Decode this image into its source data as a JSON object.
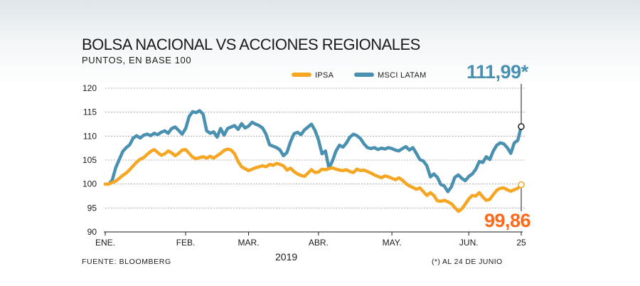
{
  "header": {
    "title": "BOLSA NACIONAL VS ACCIONES REGIONALES",
    "subtitle": "PUNTOS, EN BASE 100"
  },
  "footer": {
    "source": "FUENTE: BLOOMBERG",
    "note": "(*) AL 24 DE JUNIO"
  },
  "chart_data": {
    "type": "line",
    "title": "BOLSA NACIONAL VS ACCIONES REGIONALES",
    "subtitle": "PUNTOS, EN BASE 100",
    "xlabel": "2019",
    "ylabel": "",
    "ylim": [
      90,
      120
    ],
    "yticks": [
      90,
      95,
      100,
      105,
      110,
      115,
      120
    ],
    "x_tick_labels": [
      "ENE.",
      "FEB.",
      "MAR.",
      "ABR.",
      "MAY.",
      "JUN.",
      "25"
    ],
    "x_tick_index": [
      0,
      23,
      41,
      61,
      82,
      104,
      119
    ],
    "grid": true,
    "legend": "top",
    "colors": {
      "IPSA": "#f5a623",
      "MSCI LATAM": "#4a90b0",
      "msci_callout": "#4a90b0",
      "ipsa_callout": "#ff6a1a"
    },
    "annotations": {
      "msci_last": "111,99*",
      "ipsa_last": "99,86"
    },
    "series": [
      {
        "name": "IPSA",
        "values": [
          100,
          100,
          100.3,
          100.6,
          101.2,
          101.8,
          102.3,
          103,
          103.8,
          104.6,
          105.2,
          105.5,
          106.2,
          106.8,
          107.2,
          106.6,
          106,
          106.3,
          106.9,
          106.5,
          105.9,
          106.4,
          107.1,
          107.2,
          106.4,
          105.6,
          105.3,
          105.5,
          105.7,
          105.4,
          105.8,
          105.4,
          105.9,
          106.4,
          107,
          107.3,
          107.1,
          106.3,
          104.7,
          103.6,
          103.2,
          102.8,
          103.1,
          103.4,
          103.6,
          103.8,
          103.6,
          104.1,
          103.9,
          104.3,
          104.1,
          103.8,
          102.9,
          103.3,
          102.6,
          102.1,
          101.8,
          101.6,
          102.3,
          103,
          102.4,
          102.5,
          103.1,
          103,
          103.2,
          103.4,
          103.1,
          102.9,
          102.8,
          103,
          102.6,
          102.4,
          103.1,
          102.8,
          102.9,
          102.6,
          102.3,
          101.9,
          101.6,
          101.3,
          101.7,
          101.5,
          101.2,
          100.9,
          101.3,
          100.8,
          100.1,
          99.6,
          99.3,
          98.9,
          99.2,
          98.4,
          97.6,
          98.2,
          97.6,
          96.5,
          96.4,
          96.6,
          96.3,
          95.9,
          95.1,
          94.3,
          94.8,
          95.8,
          96.9,
          97.6,
          97.5,
          98.2,
          97.3,
          96.6,
          96.8,
          97.8,
          98.7,
          99.1,
          99.2,
          98.8,
          98.5,
          98.8,
          99.1,
          99.86
        ]
      },
      {
        "name": "MSCI LATAM",
        "values": [
          100,
          100,
          100.8,
          103.4,
          105.1,
          106.8,
          107.6,
          108.2,
          109.6,
          110.1,
          109.6,
          110.2,
          110.4,
          110.1,
          110.6,
          110.3,
          110.8,
          111.1,
          110.6,
          111.6,
          111.9,
          111.2,
          110.4,
          111.6,
          114.1,
          115.1,
          114.9,
          115.3,
          114.6,
          111.1,
          110.6,
          110.9,
          109.8,
          111.6,
          110.2,
          111.6,
          111.9,
          112.2,
          111.4,
          112.6,
          111.7,
          112.1,
          112.9,
          112.5,
          112.2,
          111.7,
          110.4,
          108.2,
          107.9,
          107.6,
          107.1,
          105.9,
          106.6,
          108.8,
          110.5,
          110.8,
          110.3,
          111.3,
          111.9,
          112.5,
          111.2,
          109.2,
          106.3,
          106.9,
          103.3,
          104.8,
          106.9,
          108.1,
          107.7,
          108.6,
          109.8,
          110.4,
          110.1,
          109.5,
          108.4,
          107.6,
          107.4,
          107.6,
          107.2,
          107.5,
          107.3,
          107.6,
          107.4,
          107.1,
          106.9,
          107.4,
          107.8,
          107.1,
          107.6,
          106.4,
          105.1,
          104.8,
          103.8,
          101.5,
          102.1,
          101.4,
          99.9,
          99.6,
          98.4,
          99.4,
          101.4,
          101.9,
          101.2,
          100.7,
          101.6,
          102.1,
          103.1,
          104.7,
          104.5,
          105.7,
          105.1,
          106.9,
          108.1,
          108.6,
          108.4,
          107.6,
          106.4,
          108.6,
          109.1,
          111.99
        ]
      }
    ]
  }
}
